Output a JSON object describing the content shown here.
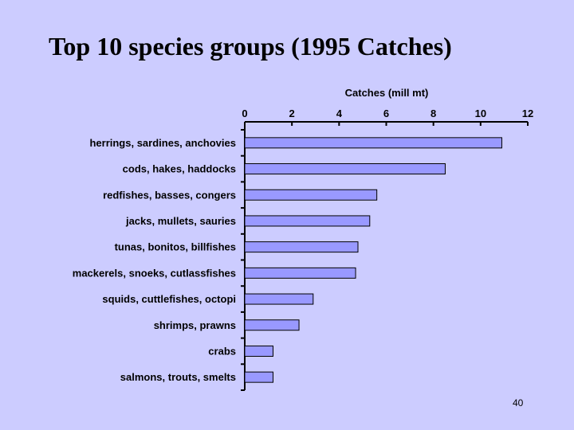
{
  "slide": {
    "title": "Top 10 species groups (1995 Catches)",
    "page_number": "40"
  },
  "colors": {
    "background": "#ccccff",
    "bar_fill": "#9999ff",
    "bar_stroke": "#000000"
  },
  "chart_data": {
    "type": "bar",
    "orientation": "horizontal",
    "title": "Catches (mill mt)",
    "xlabel": "",
    "ylabel": "",
    "xlim": [
      0,
      12
    ],
    "xticks": [
      0,
      2,
      4,
      6,
      8,
      10,
      12
    ],
    "x_axis_position": "top",
    "grid": false,
    "categories": [
      "herrings, sardines, anchovies",
      "cods, hakes, haddocks",
      "redfishes, basses, congers",
      "jacks, mullets, sauries",
      "tunas, bonitos, billfishes",
      "mackerels, snoeks, cutlassfishes",
      "squids, cuttlefishes, octopi",
      "shrimps, prawns",
      "crabs",
      "salmons, trouts, smelts"
    ],
    "values": [
      10.9,
      8.5,
      5.6,
      5.3,
      4.8,
      4.7,
      2.9,
      2.3,
      1.2,
      1.2
    ]
  }
}
